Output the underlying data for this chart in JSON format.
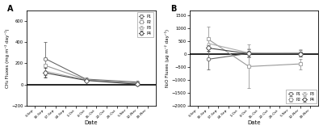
{
  "dates_a": [
    "3-Sep",
    "10-Sep",
    "17-Sep",
    "24-Sep",
    "1-Oct",
    "8-Oct",
    "15-Oct",
    "22-Oct",
    "29-Oct",
    "5-Nov",
    "12-Nov",
    "19-Nov"
  ],
  "dates_b": [
    "3-Sep",
    "10-Sep",
    "17-Sep",
    "24-Sep",
    "1-Oct",
    "8-Oct",
    "15-Oct",
    "22-Oct",
    "29-Oct",
    "5-Nov",
    "12-Nov",
    "19-Nov"
  ],
  "ch4": {
    "P1": [
      null,
      245,
      null,
      null,
      null,
      50,
      null,
      null,
      null,
      null,
      22,
      null
    ],
    "P2": [
      null,
      180,
      null,
      null,
      null,
      45,
      null,
      null,
      null,
      null,
      12,
      null
    ],
    "P3": [
      null,
      125,
      null,
      null,
      null,
      42,
      null,
      null,
      null,
      null,
      8,
      null
    ],
    "P4": [
      null,
      110,
      null,
      null,
      null,
      38,
      null,
      null,
      null,
      null,
      2,
      null
    ],
    "P1_err": [
      null,
      155,
      null,
      null,
      null,
      10,
      null,
      null,
      null,
      null,
      8,
      null
    ],
    "P2_err": [
      null,
      75,
      null,
      null,
      null,
      8,
      null,
      null,
      null,
      null,
      5,
      null
    ],
    "P3_err": [
      null,
      55,
      null,
      null,
      null,
      5,
      null,
      null,
      null,
      null,
      4,
      null
    ],
    "P4_err": [
      null,
      45,
      null,
      null,
      null,
      4,
      null,
      null,
      null,
      null,
      3,
      null
    ],
    "ylim": [
      -200,
      700
    ],
    "yticks": [
      -200,
      0,
      200,
      400,
      600
    ],
    "ylabel": "CH₄ Fluxes (mg m⁻² day⁻¹)"
  },
  "n2o": {
    "P1": [
      null,
      -200,
      null,
      null,
      null,
      30,
      null,
      null,
      null,
      null,
      40,
      null
    ],
    "P2": [
      null,
      590,
      null,
      null,
      null,
      -480,
      null,
      null,
      null,
      null,
      -380,
      null
    ],
    "P3": [
      null,
      420,
      null,
      null,
      null,
      50,
      null,
      null,
      null,
      null,
      55,
      null
    ],
    "P4": [
      null,
      240,
      null,
      null,
      null,
      20,
      null,
      null,
      null,
      null,
      10,
      null
    ],
    "P1_err": [
      null,
      380,
      null,
      null,
      null,
      150,
      null,
      null,
      null,
      null,
      120,
      null
    ],
    "P2_err": [
      null,
      480,
      null,
      null,
      null,
      850,
      null,
      null,
      null,
      null,
      200,
      null
    ],
    "P3_err": [
      null,
      200,
      null,
      null,
      null,
      180,
      null,
      null,
      null,
      null,
      140,
      null
    ],
    "P4_err": [
      null,
      120,
      null,
      null,
      null,
      120,
      null,
      null,
      null,
      null,
      100,
      null
    ],
    "ylim": [
      -2000,
      1700
    ],
    "yticks": [
      -2000,
      -1500,
      -1000,
      -500,
      0,
      500,
      1000,
      1500
    ],
    "ylabel": "N₂O Fluxes (μg m⁻² day⁻¹)"
  },
  "pt_indices": [
    1,
    5,
    10
  ],
  "markers": {
    "P1": "o",
    "P2": "s",
    "P3": "^",
    "P4": "D"
  },
  "line_colors": {
    "P1": "#666666",
    "P2": "#999999",
    "P3": "#aaaaaa",
    "P4": "#444444"
  },
  "bg_color": "#ffffff",
  "panel_bg": "#ffffff",
  "tick_label_dates": [
    0,
    1,
    2,
    3,
    4,
    5,
    6,
    7,
    8,
    9,
    10,
    11
  ]
}
